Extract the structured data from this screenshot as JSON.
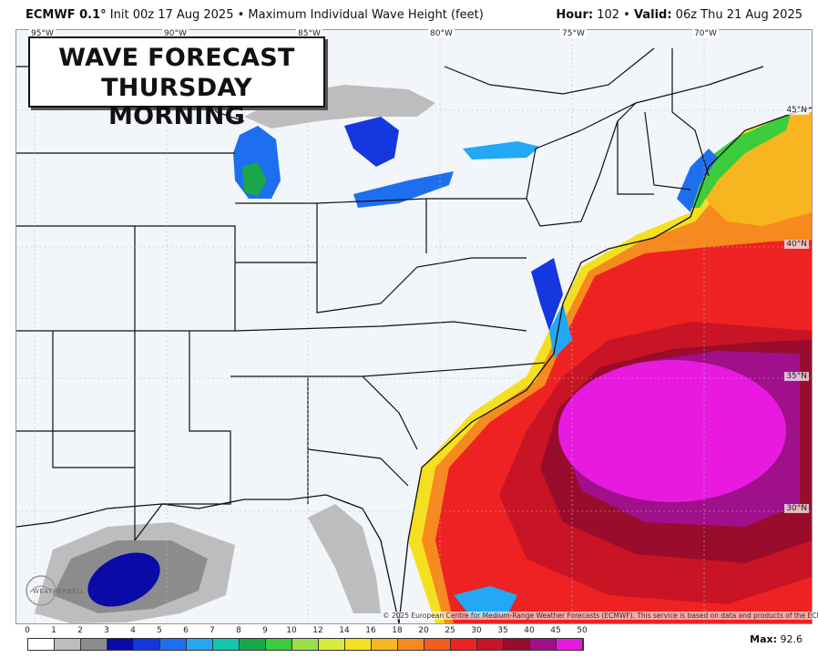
{
  "header": {
    "model": "ECMWF 0.1",
    "deg": "°",
    "init": "Init 00z 17 Aug 2025",
    "bullet": "•",
    "product": "Maximum Individual Wave Height (feet)",
    "hour_label": "Hour:",
    "hour_value": "102",
    "valid_label": "Valid:",
    "valid_value": "06z Thu 21 Aug 2025"
  },
  "title": {
    "line1": "WAVE FORECAST",
    "line2": "THURSDAY MORNING"
  },
  "lon_labels": [
    "95°W",
    "90°W",
    "85°W",
    "80°W",
    "75°W",
    "70°W"
  ],
  "lat_labels": [
    "45°N",
    "40°N",
    "35°N",
    "30°N"
  ],
  "logo_text": "WEATHERBELL",
  "copyright": "© 2025 European Centre for Medium-Range Weather Forecasts (ECMWF). This service is based on data and products of the ECMWF.",
  "colorbar": {
    "ticks": [
      "0",
      "1",
      "2",
      "3",
      "4",
      "5",
      "6",
      "7",
      "8",
      "9",
      "10",
      "12",
      "14",
      "16",
      "18",
      "20",
      "25",
      "30",
      "35",
      "40",
      "45",
      "50"
    ],
    "colors": [
      "#ffffff",
      "#bdbdbd",
      "#8c8c8c",
      "#0a0aa8",
      "#1537e0",
      "#1e6ef0",
      "#22a8f5",
      "#10c8b0",
      "#18a84a",
      "#3ccc3c",
      "#9be04a",
      "#d6ec3c",
      "#f5e020",
      "#f7b520",
      "#f78a1e",
      "#f25c1c",
      "#ee2222",
      "#c81424",
      "#9a0c2c",
      "#a0108a",
      "#e81ae0"
    ]
  },
  "max": {
    "label": "Max:",
    "value": "92.6"
  },
  "colors": {
    "land": "#f2f5fa",
    "border": "#111111"
  }
}
